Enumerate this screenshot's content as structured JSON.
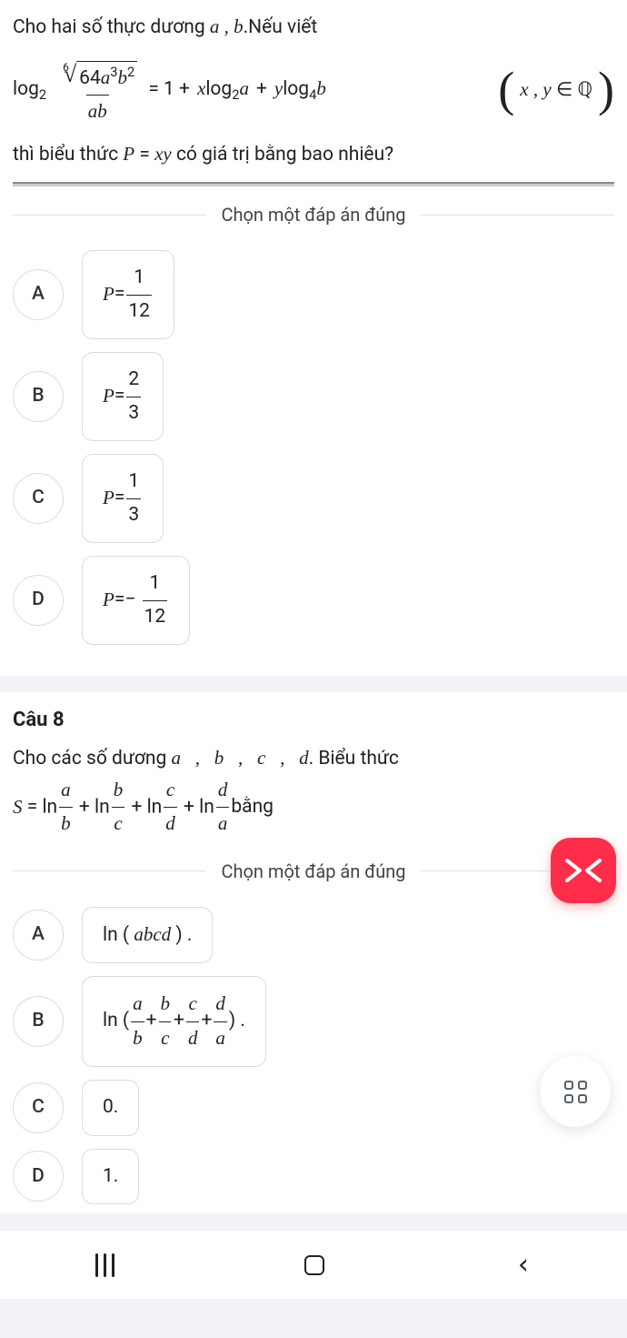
{
  "q7": {
    "line1_a": "Cho hai số thực dương ",
    "line1_vars": "a , b",
    "line1_b": ".Nếu viết",
    "log": "log",
    "base2": "2",
    "base4": "4",
    "root_idx": "6",
    "rad_64": "64",
    "rad_a": "a",
    "rad_a_exp": "3",
    "rad_b": "b",
    "rad_b_exp": "2",
    "den_ab": "ab",
    "eq1_mid": " = 1 + ",
    "x": "x",
    "a": "a",
    "y": "y",
    "b_var": "b",
    "plus": " + ",
    "cond_inner_a": "x , y",
    "cond_in": " ∈ ",
    "cond_Q": "ℚ",
    "line3_a": "thì biểu thức ",
    "P": "P",
    "eq_sym": " = ",
    "xy": "xy",
    "line3_b": " có giá trị bằng bao nhiêu?",
    "choose": "Chọn một đáp án đúng",
    "options": [
      {
        "letter": "A",
        "num": "1",
        "den": "12",
        "neg": false
      },
      {
        "letter": "B",
        "num": "2",
        "den": "3",
        "neg": false
      },
      {
        "letter": "C",
        "num": "1",
        "den": "3",
        "neg": false
      },
      {
        "letter": "D",
        "num": "1",
        "den": "12",
        "neg": true
      }
    ]
  },
  "q8": {
    "title": "Câu 8",
    "line1_a": "Cho các số dương ",
    "abcd": "a   ,   b   ,   c   ,   d",
    "line1_b": ". Biểu thức",
    "S": "S",
    "ln": "ln",
    "plus": " + ",
    "frs": [
      {
        "n": "a",
        "d": "b"
      },
      {
        "n": "b",
        "d": "c"
      },
      {
        "n": "c",
        "d": "d"
      },
      {
        "n": "d",
        "d": "a"
      }
    ],
    "bang": " bằng",
    "choose": "Chọn một đáp án đúng",
    "optA": {
      "letter": "A",
      "left": "ln ( ",
      "mid": "abcd",
      "right": " ) ."
    },
    "optB": {
      "letter": "B",
      "left": "ln ( ",
      "frs": [
        {
          "n": "a",
          "d": "b"
        },
        {
          "n": "b",
          "d": "c"
        },
        {
          "n": "c",
          "d": "d"
        },
        {
          "n": "d",
          "d": "a"
        }
      ],
      "plus": " + ",
      "right": " ) ."
    },
    "optC": {
      "letter": "C",
      "text": "0."
    },
    "optD": {
      "letter": "D",
      "text": "1."
    }
  },
  "nav": {}
}
